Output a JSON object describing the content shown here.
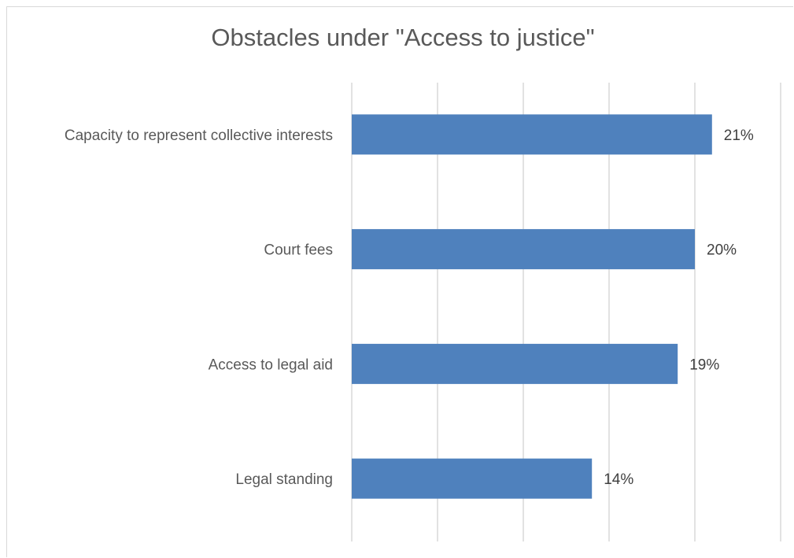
{
  "chart_data": {
    "type": "bar",
    "orientation": "horizontal",
    "title": "Obstacles under \"Access to justice\"",
    "categories": [
      "Capacity to represent collective interests",
      "Court fees",
      "Access to legal aid",
      "Legal standing"
    ],
    "values": [
      21,
      20,
      19,
      14
    ],
    "value_labels": [
      "21%",
      "20%",
      "19%",
      "14%"
    ],
    "unit": "%",
    "xlim": [
      0,
      25
    ],
    "grid": true,
    "legend": "none",
    "colors": {
      "bar": "#4f81bd",
      "grid": "#d9d9d9",
      "text": "#595959"
    }
  }
}
